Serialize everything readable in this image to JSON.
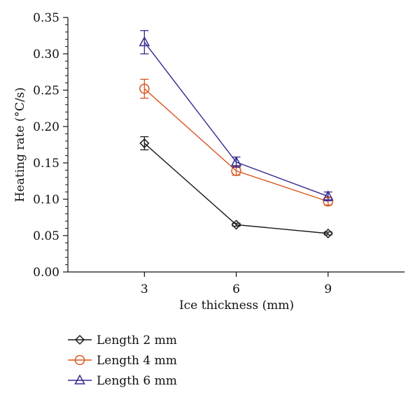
{
  "chart_data": {
    "type": "line",
    "xlabel": "Ice thickness (mm)",
    "ylabel": "Heating rate (°C/s)",
    "x": [
      3,
      6,
      9
    ],
    "x_ticks": [
      "3",
      "6",
      "9"
    ],
    "xlim": [
      0.5,
      11.5
    ],
    "ylim": [
      0,
      0.35
    ],
    "y_ticks": [
      "0.00",
      "0.05",
      "0.10",
      "0.15",
      "0.20",
      "0.25",
      "0.30",
      "0.35"
    ],
    "grid": false,
    "legend_position": "bottom-left",
    "series": [
      {
        "name": "Length 2 mm",
        "color": "#1a1a1a",
        "marker": "diamond",
        "values": [
          0.177,
          0.065,
          0.053
        ],
        "errors": [
          0.009,
          0.002,
          0.002
        ]
      },
      {
        "name": "Length 4 mm",
        "color": "#d9541e",
        "marker": "circle",
        "values": [
          0.252,
          0.139,
          0.097
        ],
        "errors": [
          0.013,
          0.006,
          0.005
        ]
      },
      {
        "name": "Length 6 mm",
        "color": "#332a91",
        "marker": "triangle",
        "values": [
          0.316,
          0.151,
          0.104
        ],
        "errors": [
          0.016,
          0.007,
          0.006
        ]
      }
    ]
  }
}
